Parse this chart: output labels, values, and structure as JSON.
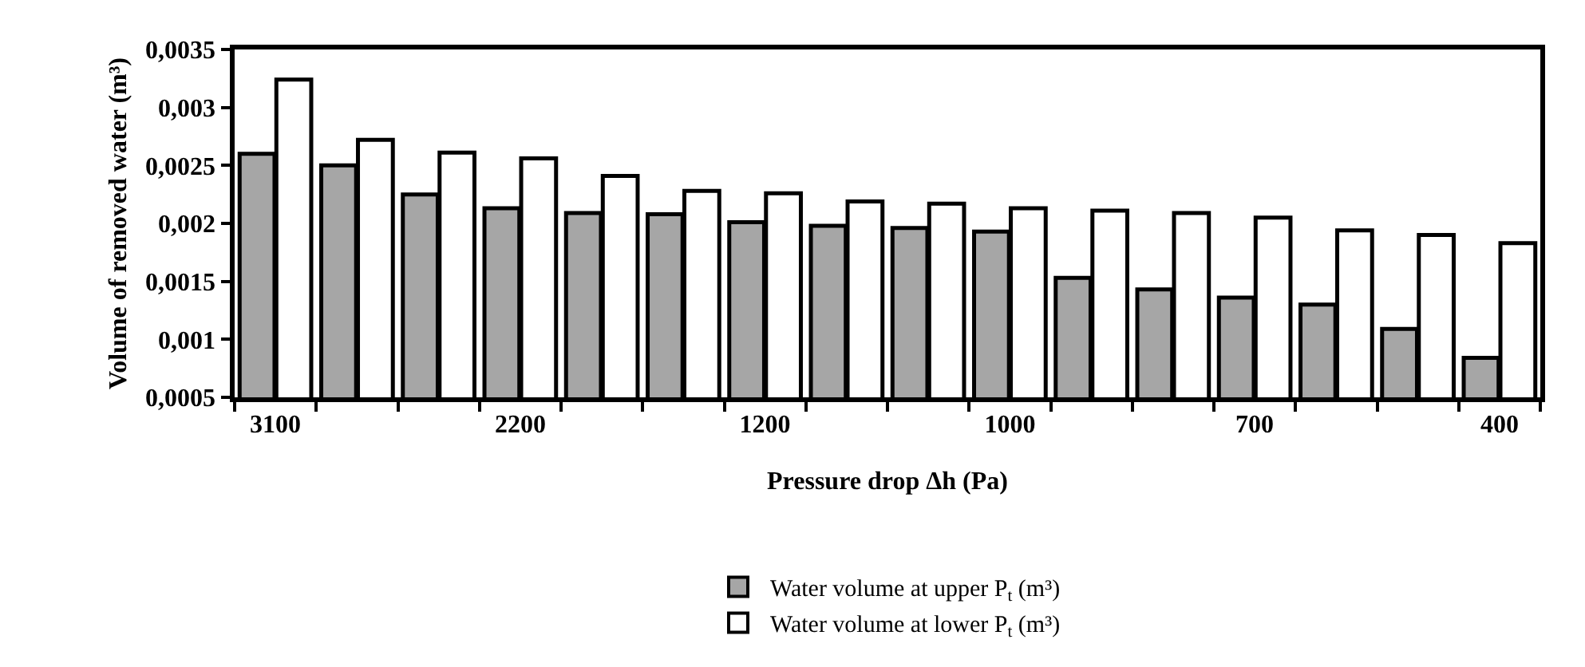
{
  "chart_data": {
    "type": "bar",
    "xlabel": "Pressure drop Δh (Pa)",
    "ylabel": "Volume of removed water (m³)",
    "categories": [
      "3100",
      null,
      null,
      "2200",
      null,
      null,
      "1200",
      null,
      null,
      "1000",
      null,
      null,
      "700",
      null,
      null,
      "400"
    ],
    "series": [
      {
        "name": "Water volume at upper P$_{t}$ (m³)",
        "color": "#a6a6a6",
        "values": [
          0.0026,
          0.0025,
          0.00225,
          0.00213,
          0.00209,
          0.00208,
          0.00201,
          0.00198,
          0.00196,
          0.00193,
          0.00153,
          0.00143,
          0.00136,
          0.0013,
          0.00109,
          0.00084
        ]
      },
      {
        "name": "Water volume at lower P$_{t}$ (m³)",
        "color": "#ffffff",
        "values": [
          0.00324,
          0.00272,
          0.00261,
          0.00256,
          0.00241,
          0.00228,
          0.00226,
          0.00219,
          0.00217,
          0.00213,
          0.00211,
          0.00209,
          0.00205,
          0.00194,
          0.0019,
          0.00183
        ]
      }
    ],
    "ylim": [
      0.0005,
      0.0035
    ],
    "yticks": [
      {
        "value": 0.0005,
        "label": "0,0005"
      },
      {
        "value": 0.001,
        "label": "0,001"
      },
      {
        "value": 0.0015,
        "label": "0,0015"
      },
      {
        "value": 0.002,
        "label": "0,002"
      },
      {
        "value": 0.0025,
        "label": "0,0025"
      },
      {
        "value": 0.003,
        "label": "0,003"
      },
      {
        "value": 0.0035,
        "label": "0,0035"
      }
    ],
    "grid": false,
    "legend": "bottom"
  }
}
